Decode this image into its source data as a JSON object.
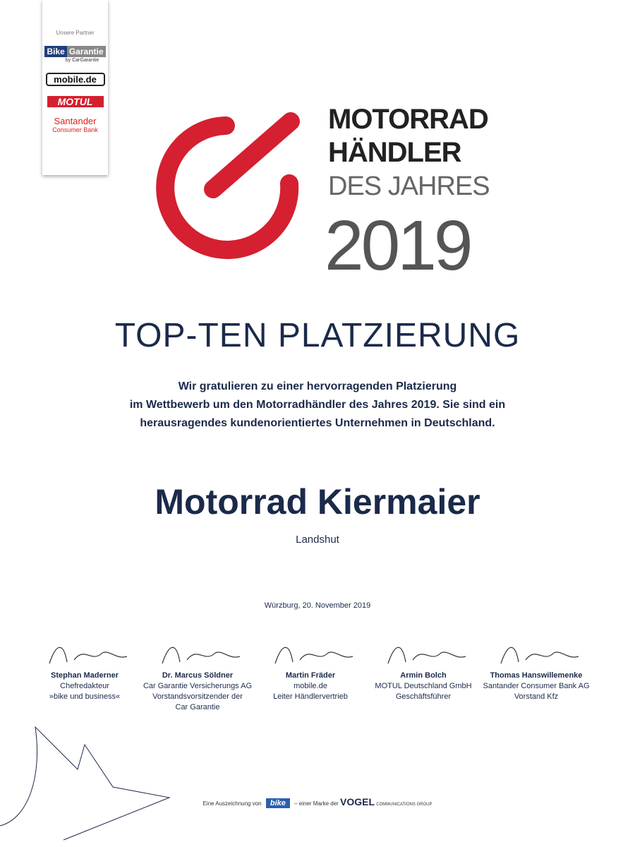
{
  "partners": {
    "title": "Unsere Partner",
    "logos": [
      "Bike",
      "Garantie",
      "by CarGarantie",
      "mobile.de",
      "MOTUL",
      "Santander",
      "Consumer Bank"
    ]
  },
  "brand": {
    "line1": "MOTORRAD",
    "line2": "HÄNDLER",
    "line3": "DES JAHRES",
    "year": "2019",
    "accent": "#d42030"
  },
  "heading": "TOP-TEN PLATZIERUNG",
  "body": [
    "Wir gratulieren zu einer hervorragenden Platzierung",
    "im Wettbewerb um den Motorradhändler des Jahres 2019. Sie sind ein",
    "herausragendes kundenorientiertes Unternehmen in Deutschland."
  ],
  "recipient": {
    "name": "Motorrad Kiermaier",
    "city": "Landshut"
  },
  "date": "Würzburg, 20. November 2019",
  "signatories": [
    {
      "name": "Stephan Maderner",
      "lines": [
        "Chefredakteur",
        "»bike und business«"
      ]
    },
    {
      "name": "Dr. Marcus Söldner",
      "lines": [
        "Car Garantie Versicherungs AG",
        "Vorstandsvorsitzender der",
        "Car Garantie"
      ]
    },
    {
      "name": "Martin Fräder",
      "lines": [
        "mobile.de",
        "Leiter Händlervertrieb"
      ]
    },
    {
      "name": "Armin Bolch",
      "lines": [
        "MOTUL Deutschland GmbH",
        "Geschäftsführer"
      ]
    },
    {
      "name": "Thomas Hanswillemenke",
      "lines": [
        "Santander Consumer Bank AG",
        "Vorstand Kfz"
      ]
    }
  ],
  "footer": {
    "prefix": "Eine Auszeichnung von",
    "bike_logo": "bike",
    "middle": "– einer Marke der",
    "vogel": "VOGEL",
    "vogel_sub": "COMMUNICATIONS GROUP"
  }
}
